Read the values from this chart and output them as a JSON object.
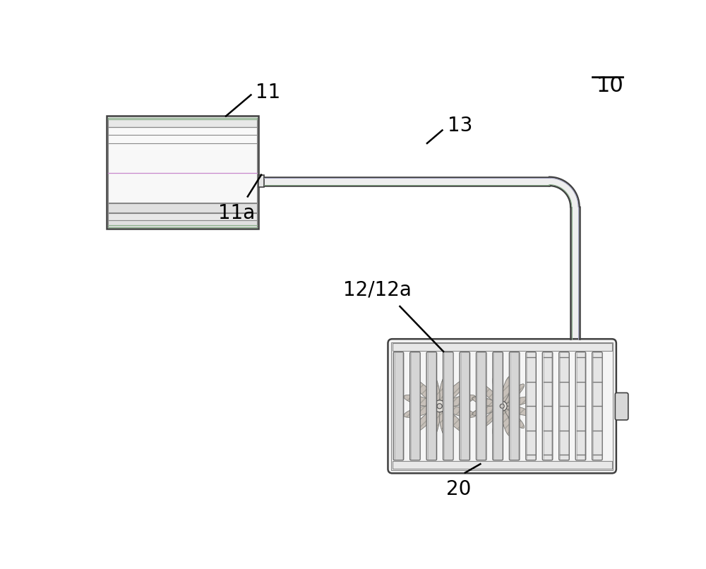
{
  "bg_color": "#ffffff",
  "lc": "#404040",
  "lc_light": "#888888",
  "lc_inner": "#aaaaaa",
  "fill_unit": "#f8f8f8",
  "fill_pipe": "#f0f0f0",
  "fill_stripe_white": "#ffffff",
  "fill_stripe_gray": "#e8e8e8",
  "fill_outdoor": "#f5f5f5",
  "fill_slat": "#e0e0e0",
  "fill_fan_blade": "#b0a898",
  "fill_slat_plain": "#ececec",
  "pipe_inner_color": "#b0b8c8",
  "green_tinge": "#8ab08a",
  "purple_tinge": "#a0a0c0",
  "label_10": "10",
  "label_11": "11",
  "label_11a": "11a",
  "label_13": "13",
  "label_12": "12/12a",
  "label_20": "20",
  "fontsize": 20,
  "ann_lw": 1.8,
  "lw_main": 1.8,
  "lw_thin": 0.8
}
